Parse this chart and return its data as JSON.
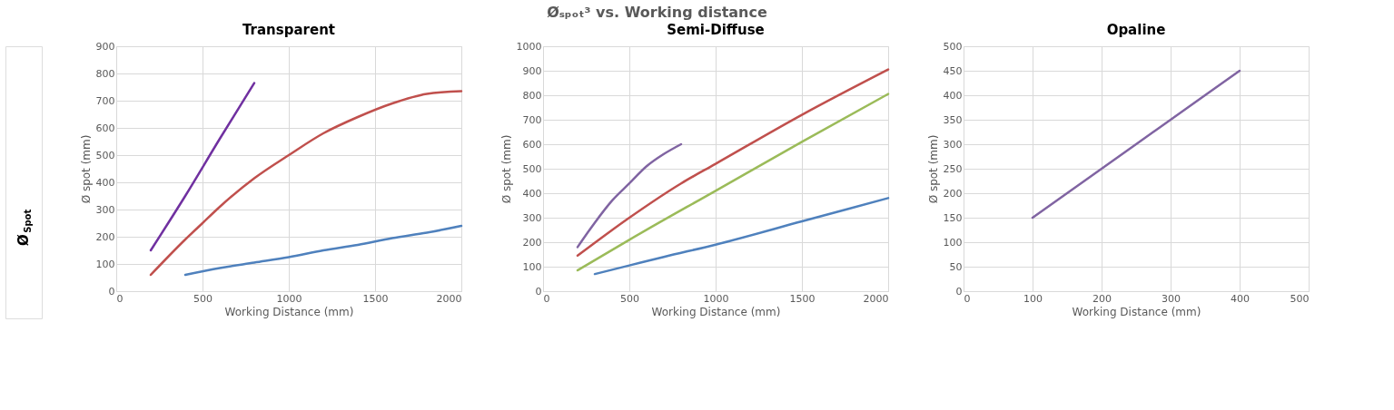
{
  "chart_data": [
    {
      "type": "line",
      "title": "Transparent",
      "xlabel": "Working Distance (mm)",
      "ylabel": "Ø spot (mm)",
      "xlim": [
        0,
        2000
      ],
      "xticks": [
        0,
        500,
        1000,
        1500,
        2000
      ],
      "ylim": [
        0,
        900
      ],
      "yticks": [
        0,
        100,
        200,
        300,
        400,
        500,
        600,
        700,
        800,
        900
      ],
      "grid": true,
      "legend": false,
      "marker": "none",
      "line_style": "solid",
      "annotations": [
        "Øₛₚₒₜ³ vs. Working distance",
        "Ø$_{Spot}$"
      ],
      "series": [
        {
          "color": "#7030a0",
          "x": [
            200,
            400,
            600,
            800
          ],
          "values": [
            150,
            350,
            560,
            765
          ]
        },
        {
          "color": "#c0504d",
          "x": [
            200,
            400,
            500,
            600,
            800,
            1000,
            1200,
            1400,
            1600,
            1800,
            2000
          ],
          "values": [
            60,
            190,
            250,
            310,
            415,
            500,
            580,
            640,
            690,
            725,
            735
          ]
        },
        {
          "color": "#4f81bd",
          "x": [
            400,
            600,
            800,
            1000,
            1200,
            1400,
            1600,
            1800,
            2000
          ],
          "values": [
            60,
            85,
            105,
            125,
            150,
            170,
            195,
            215,
            240
          ]
        }
      ]
    },
    {
      "type": "line",
      "title": "Semi-Diffuse",
      "xlabel": "Working Distance (mm)",
      "ylabel": "Ø spot (mm)",
      "xlim": [
        0,
        2000
      ],
      "xticks": [
        0,
        500,
        1000,
        1500,
        2000
      ],
      "ylim": [
        0,
        1000
      ],
      "yticks": [
        0,
        100,
        200,
        300,
        400,
        500,
        600,
        700,
        800,
        900,
        1000
      ],
      "grid": true,
      "legend": false,
      "marker": "none",
      "line_style": "solid",
      "series": [
        {
          "color": "#8064a2",
          "x": [
            200,
            300,
            400,
            500,
            600,
            700,
            800
          ],
          "values": [
            180,
            280,
            370,
            440,
            510,
            560,
            600
          ]
        },
        {
          "color": "#c0504d",
          "x": [
            200,
            500,
            800,
            1000,
            1500,
            2000
          ],
          "values": [
            145,
            300,
            440,
            520,
            720,
            905
          ]
        },
        {
          "color": "#9bbb59",
          "x": [
            200,
            500,
            1000,
            1500,
            2000
          ],
          "values": [
            85,
            210,
            410,
            610,
            805
          ]
        },
        {
          "color": "#4f81bd",
          "x": [
            300,
            500,
            700,
            1000,
            1500,
            2000
          ],
          "values": [
            70,
            105,
            140,
            190,
            285,
            380
          ]
        }
      ]
    },
    {
      "type": "line",
      "title": "Opaline",
      "xlabel": "Working Distance (mm)",
      "ylabel": "Ø spot (mm)",
      "xlim": [
        0,
        500
      ],
      "xticks": [
        0,
        100,
        200,
        300,
        400,
        500
      ],
      "ylim": [
        0,
        500
      ],
      "yticks": [
        0,
        50,
        100,
        150,
        200,
        250,
        300,
        350,
        400,
        450,
        500
      ],
      "grid": true,
      "legend": false,
      "marker": "none",
      "line_style": "solid",
      "series": [
        {
          "color": "#8064a2",
          "x": [
            100,
            200,
            300,
            400
          ],
          "values": [
            150,
            250,
            350,
            450
          ]
        }
      ]
    }
  ]
}
